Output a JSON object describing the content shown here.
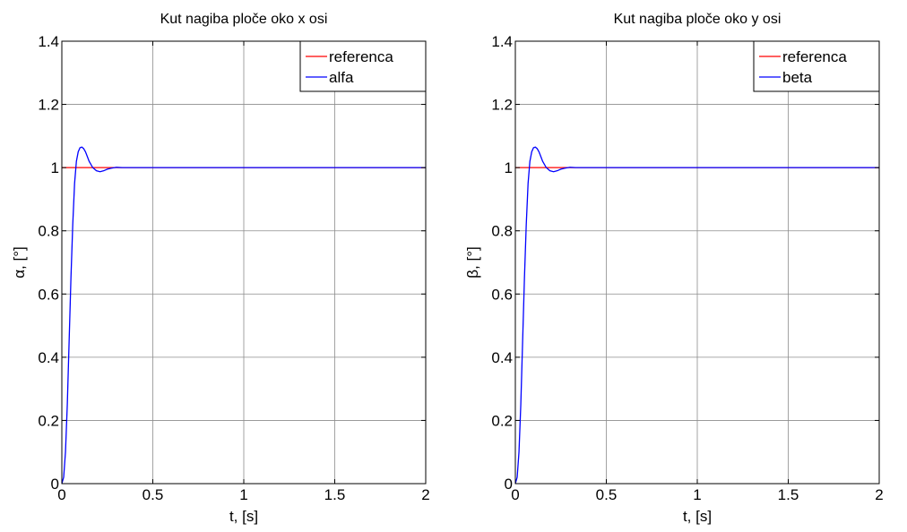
{
  "chart_data": [
    {
      "type": "line",
      "title": "Kut nagiba ploče oko x osi",
      "xlabel": "t, [s]",
      "ylabel": "α, [°]",
      "xlim": [
        0,
        2
      ],
      "ylim": [
        0,
        1.4
      ],
      "xticks": [
        "0",
        "0.5",
        "1",
        "1.5",
        "2"
      ],
      "xtick_values": [
        0,
        0.5,
        1,
        1.5,
        2
      ],
      "yticks": [
        "0",
        "0.2",
        "0.4",
        "0.6",
        "0.8",
        "1",
        "1.2",
        "1.4"
      ],
      "ytick_values": [
        0,
        0.2,
        0.4,
        0.6,
        0.8,
        1.0,
        1.2,
        1.4
      ],
      "grid": true,
      "legend_position": "top-right",
      "series": [
        {
          "name": "referenca",
          "color": "#ff0000",
          "x": [
            0,
            2
          ],
          "y": [
            1,
            1
          ]
        },
        {
          "name": "alfa",
          "color": "#0000ff",
          "x": [
            0,
            0.01,
            0.02,
            0.03,
            0.04,
            0.05,
            0.06,
            0.07,
            0.08,
            0.09,
            0.1,
            0.11,
            0.12,
            0.13,
            0.14,
            0.15,
            0.17,
            0.19,
            0.21,
            0.23,
            0.25,
            0.27,
            0.3,
            0.33,
            0.36,
            0.4,
            0.5,
            0.7,
            1.0,
            1.5,
            2.0
          ],
          "y": [
            0,
            0.02,
            0.1,
            0.25,
            0.45,
            0.65,
            0.82,
            0.95,
            1.02,
            1.05,
            1.063,
            1.065,
            1.06,
            1.05,
            1.035,
            1.02,
            1.0,
            0.99,
            0.987,
            0.99,
            0.995,
            0.998,
            1.001,
            1.0,
            1.0,
            1.0,
            1.0,
            1.0,
            1.0,
            1.0,
            1.0
          ]
        }
      ]
    },
    {
      "type": "line",
      "title": "Kut nagiba ploče oko y osi",
      "xlabel": "t, [s]",
      "ylabel": "β, [°]",
      "xlim": [
        0,
        2
      ],
      "ylim": [
        0,
        1.4
      ],
      "xticks": [
        "0",
        "0.5",
        "1",
        "1.5",
        "2"
      ],
      "xtick_values": [
        0,
        0.5,
        1,
        1.5,
        2
      ],
      "yticks": [
        "0",
        "0.2",
        "0.4",
        "0.6",
        "0.8",
        "1",
        "1.2",
        "1.4"
      ],
      "ytick_values": [
        0,
        0.2,
        0.4,
        0.6,
        0.8,
        1.0,
        1.2,
        1.4
      ],
      "grid": true,
      "legend_position": "top-right",
      "series": [
        {
          "name": "referenca",
          "color": "#ff0000",
          "x": [
            0,
            2
          ],
          "y": [
            1,
            1
          ]
        },
        {
          "name": "beta",
          "color": "#0000ff",
          "x": [
            0,
            0.01,
            0.02,
            0.03,
            0.04,
            0.05,
            0.06,
            0.07,
            0.08,
            0.09,
            0.1,
            0.11,
            0.12,
            0.13,
            0.14,
            0.15,
            0.17,
            0.19,
            0.21,
            0.23,
            0.25,
            0.27,
            0.3,
            0.33,
            0.36,
            0.4,
            0.5,
            0.7,
            1.0,
            1.5,
            2.0
          ],
          "y": [
            0,
            0.02,
            0.1,
            0.25,
            0.45,
            0.65,
            0.82,
            0.95,
            1.02,
            1.05,
            1.063,
            1.065,
            1.06,
            1.05,
            1.035,
            1.02,
            1.0,
            0.99,
            0.987,
            0.99,
            0.995,
            0.998,
            1.001,
            1.0,
            1.0,
            1.0,
            1.0,
            1.0,
            1.0,
            1.0,
            1.0
          ]
        }
      ]
    }
  ]
}
